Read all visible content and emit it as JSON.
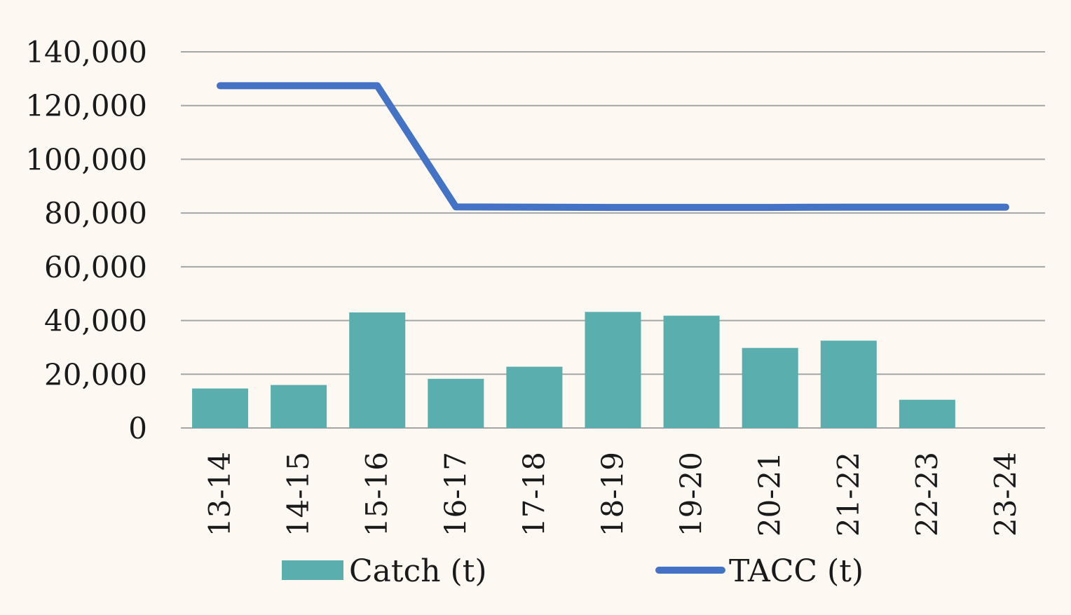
{
  "chart_data": {
    "type": "bar",
    "categories": [
      "13-14",
      "14-15",
      "15-16",
      "16-17",
      "17-18",
      "18-19",
      "19-20",
      "20-21",
      "21-22",
      "22-23",
      "23-24"
    ],
    "series": [
      {
        "name": "Catch (t)",
        "type": "bar",
        "color": "#5aaead",
        "values": [
          14700,
          16000,
          43000,
          18300,
          22800,
          43200,
          41800,
          29800,
          32500,
          10500,
          0
        ]
      },
      {
        "name": "TACC (t)",
        "type": "line",
        "color": "#4472c4",
        "values": [
          127400,
          127400,
          127400,
          82300,
          82200,
          82100,
          82100,
          82100,
          82200,
          82200,
          82200
        ]
      }
    ],
    "yticks": [
      "0",
      "20,000",
      "40,000",
      "60,000",
      "80,000",
      "100,000",
      "120,000",
      "140,000"
    ],
    "ylim": [
      0,
      140000
    ],
    "grid": true,
    "legend_position": "bottom",
    "title": "",
    "xlabel": "",
    "ylabel": ""
  }
}
